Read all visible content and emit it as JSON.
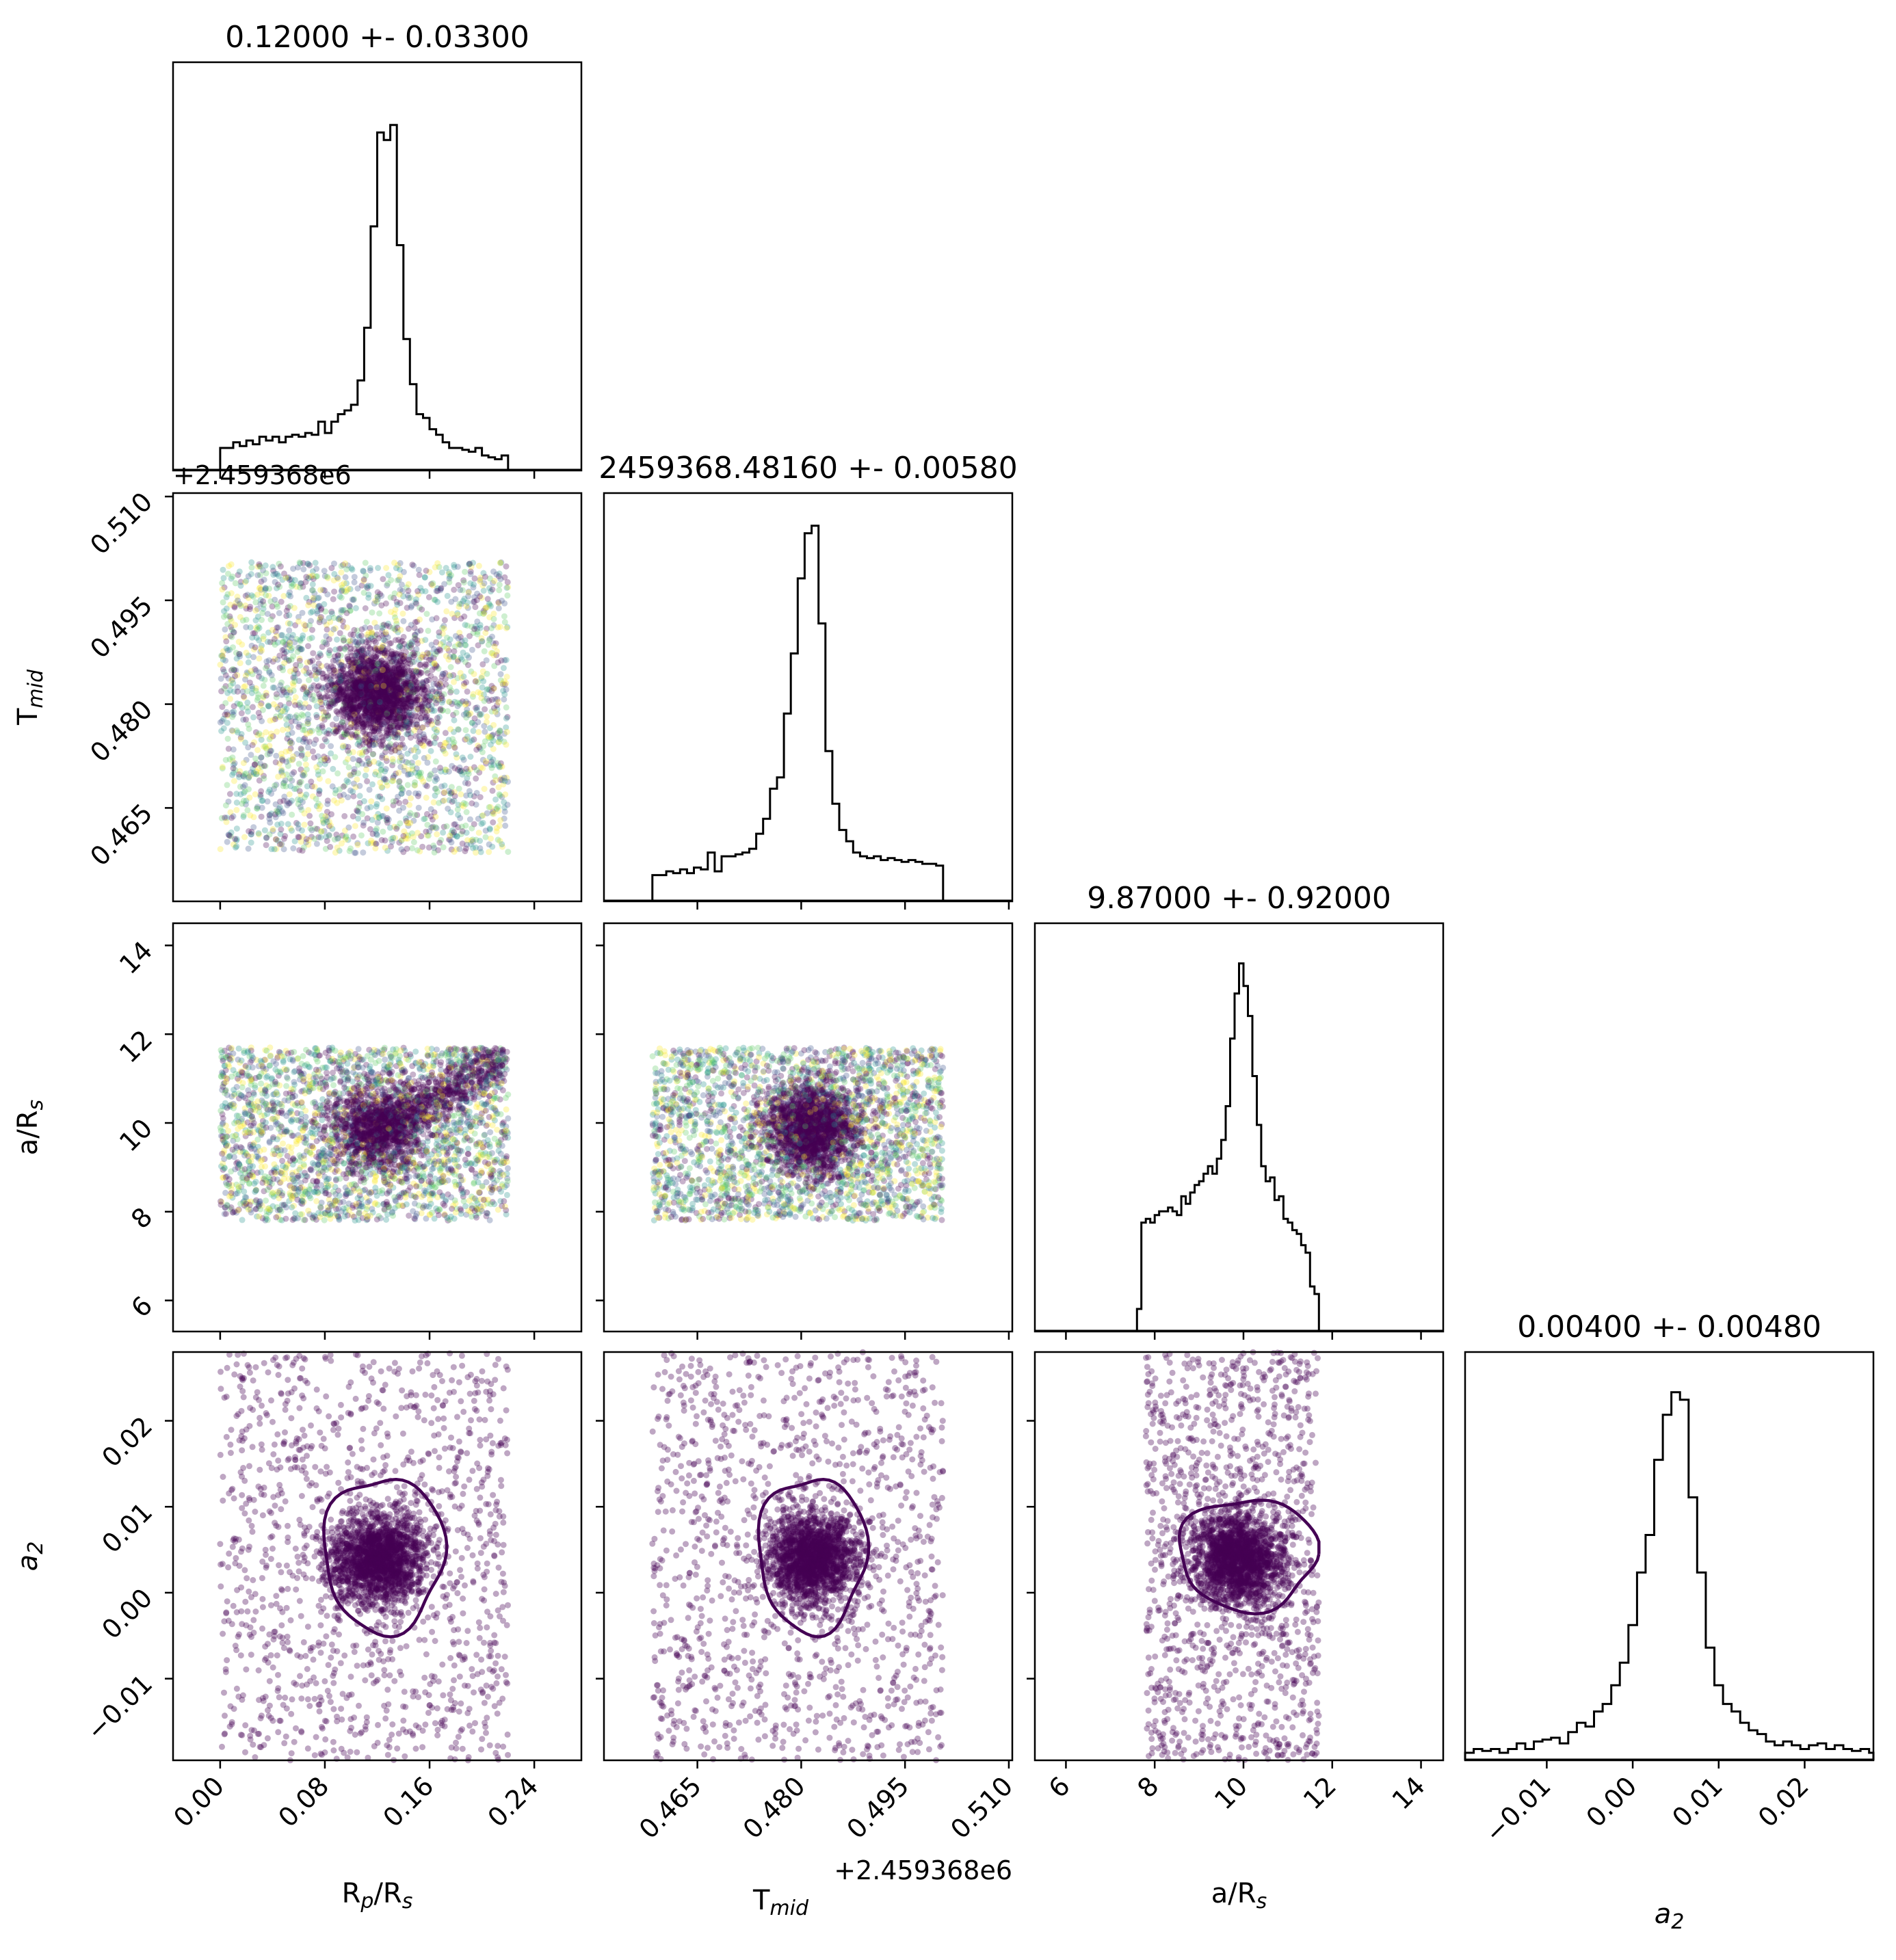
{
  "chart_data": {
    "type": "scatter",
    "subtype": "corner-plot",
    "parameters": [
      {
        "key": "rp",
        "label_main": "R",
        "label_sub": "p",
        "label_main2": "/R",
        "label_sub2": "s",
        "range": [
          -0.036,
          0.276
        ],
        "ticks": [
          0.0,
          0.08,
          0.16,
          0.24
        ],
        "tick_labels": [
          "0.00",
          "0.08",
          "0.16",
          "0.24"
        ],
        "offset_text": "",
        "title": "0.12000 +- 0.03300",
        "median": 0.12,
        "sigma": 0.033,
        "uniform_bounds": [
          0.0,
          0.22
        ]
      },
      {
        "key": "tmid",
        "label_main": "T",
        "label_sub": "mid",
        "label_main2": "",
        "label_sub2": "",
        "range": [
          0.4515,
          0.5105
        ],
        "ticks": [
          0.465,
          0.48,
          0.495,
          0.51
        ],
        "tick_labels": [
          "0.465",
          "0.480",
          "0.495",
          "0.510"
        ],
        "offset_text": "+2.459368e6",
        "title": "2459368.48160 +- 0.00580",
        "median": 0.4816,
        "sigma": 0.0058,
        "uniform_bounds": [
          0.4585,
          0.5005
        ]
      },
      {
        "key": "ars",
        "label_main": "a/R",
        "label_sub": "s",
        "label_main2": "",
        "label_sub2": "",
        "range": [
          5.3,
          14.5
        ],
        "ticks": [
          6,
          8,
          10,
          12,
          14
        ],
        "tick_labels": [
          "6",
          "8",
          "10",
          "12",
          "14"
        ],
        "offset_text": "",
        "title": "9.87000 +- 0.92000",
        "median": 9.87,
        "sigma": 0.92,
        "uniform_bounds": [
          7.8,
          11.7
        ]
      },
      {
        "key": "a2",
        "label_main": "a",
        "label_sub": "2",
        "label_main2": "",
        "label_sub2": "",
        "range": [
          -0.0195,
          0.028
        ],
        "ticks": [
          -0.01,
          0.0,
          0.01,
          0.02
        ],
        "tick_labels": [
          "−0.01",
          "0.00",
          "0.01",
          "0.02"
        ],
        "offset_text": "",
        "title": "0.00400 +- 0.00480",
        "median": 0.004,
        "sigma": 0.0048,
        "uniform_bounds": [
          -0.0195,
          0.028
        ]
      }
    ],
    "histograms": [
      {
        "param": "rp",
        "bins": [
          [
            0.0,
            0.06
          ],
          [
            0.005,
            0.06
          ],
          [
            0.01,
            0.075
          ],
          [
            0.015,
            0.065
          ],
          [
            0.02,
            0.08
          ],
          [
            0.025,
            0.07
          ],
          [
            0.03,
            0.09
          ],
          [
            0.035,
            0.08
          ],
          [
            0.04,
            0.09
          ],
          [
            0.045,
            0.075
          ],
          [
            0.05,
            0.09
          ],
          [
            0.055,
            0.095
          ],
          [
            0.06,
            0.09
          ],
          [
            0.065,
            0.1
          ],
          [
            0.07,
            0.095
          ],
          [
            0.075,
            0.13
          ],
          [
            0.08,
            0.1
          ],
          [
            0.085,
            0.13
          ],
          [
            0.09,
            0.15
          ],
          [
            0.095,
            0.16
          ],
          [
            0.1,
            0.175
          ],
          [
            0.105,
            0.24
          ],
          [
            0.11,
            0.38
          ],
          [
            0.115,
            0.65
          ],
          [
            0.12,
            0.9
          ],
          [
            0.125,
            0.88
          ],
          [
            0.13,
            0.92
          ],
          [
            0.135,
            0.6
          ],
          [
            0.14,
            0.35
          ],
          [
            0.145,
            0.23
          ],
          [
            0.15,
            0.15
          ],
          [
            0.155,
            0.14
          ],
          [
            0.16,
            0.11
          ],
          [
            0.165,
            0.095
          ],
          [
            0.17,
            0.075
          ],
          [
            0.175,
            0.06
          ],
          [
            0.18,
            0.06
          ],
          [
            0.185,
            0.055
          ],
          [
            0.19,
            0.05
          ],
          [
            0.195,
            0.06
          ],
          [
            0.2,
            0.04
          ],
          [
            0.205,
            0.035
          ],
          [
            0.21,
            0.03
          ],
          [
            0.215,
            0.04
          ]
        ]
      },
      {
        "param": "tmid",
        "bins": [
          [
            0.4585,
            0.07
          ],
          [
            0.4595,
            0.07
          ],
          [
            0.4605,
            0.08
          ],
          [
            0.4615,
            0.075
          ],
          [
            0.4625,
            0.085
          ],
          [
            0.4635,
            0.075
          ],
          [
            0.4645,
            0.09
          ],
          [
            0.4655,
            0.085
          ],
          [
            0.4665,
            0.13
          ],
          [
            0.4675,
            0.08
          ],
          [
            0.4685,
            0.12
          ],
          [
            0.4695,
            0.12
          ],
          [
            0.4705,
            0.125
          ],
          [
            0.4715,
            0.13
          ],
          [
            0.4725,
            0.14
          ],
          [
            0.4735,
            0.18
          ],
          [
            0.4745,
            0.22
          ],
          [
            0.4755,
            0.3
          ],
          [
            0.4765,
            0.33
          ],
          [
            0.4775,
            0.5
          ],
          [
            0.4785,
            0.66
          ],
          [
            0.4795,
            0.86
          ],
          [
            0.4805,
            0.98
          ],
          [
            0.4815,
            1.0
          ],
          [
            0.4825,
            0.74
          ],
          [
            0.4835,
            0.4
          ],
          [
            0.4845,
            0.26
          ],
          [
            0.4855,
            0.19
          ],
          [
            0.4865,
            0.16
          ],
          [
            0.4875,
            0.13
          ],
          [
            0.4885,
            0.12
          ],
          [
            0.4895,
            0.115
          ],
          [
            0.4905,
            0.12
          ],
          [
            0.4915,
            0.11
          ],
          [
            0.4925,
            0.115
          ],
          [
            0.4935,
            0.11
          ],
          [
            0.4945,
            0.105
          ],
          [
            0.4955,
            0.11
          ],
          [
            0.4965,
            0.105
          ],
          [
            0.4975,
            0.1
          ],
          [
            0.4985,
            0.1
          ],
          [
            0.4995,
            0.095
          ]
        ]
      },
      {
        "param": "ars",
        "bins": [
          [
            7.6,
            0.06
          ],
          [
            7.7,
            0.29
          ],
          [
            7.8,
            0.3
          ],
          [
            7.9,
            0.29
          ],
          [
            8.0,
            0.31
          ],
          [
            8.1,
            0.32
          ],
          [
            8.2,
            0.32
          ],
          [
            8.3,
            0.33
          ],
          [
            8.4,
            0.32
          ],
          [
            8.5,
            0.31
          ],
          [
            8.6,
            0.36
          ],
          [
            8.7,
            0.34
          ],
          [
            8.8,
            0.37
          ],
          [
            8.9,
            0.39
          ],
          [
            9.0,
            0.4
          ],
          [
            9.1,
            0.42
          ],
          [
            9.2,
            0.44
          ],
          [
            9.3,
            0.42
          ],
          [
            9.4,
            0.46
          ],
          [
            9.5,
            0.51
          ],
          [
            9.6,
            0.6
          ],
          [
            9.7,
            0.78
          ],
          [
            9.8,
            0.9
          ],
          [
            9.9,
            0.98
          ],
          [
            10.0,
            0.92
          ],
          [
            10.1,
            0.84
          ],
          [
            10.2,
            0.68
          ],
          [
            10.3,
            0.55
          ],
          [
            10.4,
            0.44
          ],
          [
            10.5,
            0.4
          ],
          [
            10.6,
            0.41
          ],
          [
            10.7,
            0.35
          ],
          [
            10.8,
            0.36
          ],
          [
            10.9,
            0.3
          ],
          [
            11.0,
            0.29
          ],
          [
            11.1,
            0.27
          ],
          [
            11.2,
            0.26
          ],
          [
            11.3,
            0.23
          ],
          [
            11.4,
            0.21
          ],
          [
            11.5,
            0.12
          ],
          [
            11.6,
            0.1
          ]
        ]
      },
      {
        "param": "a2",
        "bins": [
          [
            -0.0195,
            0.02
          ],
          [
            -0.0185,
            0.03
          ],
          [
            -0.0175,
            0.025
          ],
          [
            -0.0165,
            0.03
          ],
          [
            -0.0155,
            0.02
          ],
          [
            -0.0145,
            0.03
          ],
          [
            -0.0135,
            0.045
          ],
          [
            -0.0125,
            0.03
          ],
          [
            -0.0115,
            0.05
          ],
          [
            -0.0105,
            0.055
          ],
          [
            -0.0095,
            0.06
          ],
          [
            -0.0085,
            0.045
          ],
          [
            -0.0075,
            0.075
          ],
          [
            -0.0065,
            0.1
          ],
          [
            -0.0055,
            0.09
          ],
          [
            -0.0045,
            0.13
          ],
          [
            -0.0035,
            0.15
          ],
          [
            -0.0025,
            0.2
          ],
          [
            -0.0015,
            0.26
          ],
          [
            -0.0005,
            0.36
          ],
          [
            0.0005,
            0.5
          ],
          [
            0.0015,
            0.6
          ],
          [
            0.0025,
            0.8
          ],
          [
            0.0035,
            0.92
          ],
          [
            0.0045,
            0.98
          ],
          [
            0.0055,
            0.96
          ],
          [
            0.0065,
            0.7
          ],
          [
            0.0075,
            0.5
          ],
          [
            0.0085,
            0.3
          ],
          [
            0.0095,
            0.2
          ],
          [
            0.0105,
            0.15
          ],
          [
            0.0115,
            0.13
          ],
          [
            0.0125,
            0.1
          ],
          [
            0.0135,
            0.08
          ],
          [
            0.0145,
            0.07
          ],
          [
            0.0155,
            0.05
          ],
          [
            0.0165,
            0.04
          ],
          [
            0.0175,
            0.05
          ],
          [
            0.0185,
            0.04
          ],
          [
            0.0195,
            0.03
          ],
          [
            0.0205,
            0.04
          ],
          [
            0.0215,
            0.045
          ],
          [
            0.0225,
            0.03
          ],
          [
            0.0235,
            0.04
          ],
          [
            0.0245,
            0.03
          ],
          [
            0.0255,
            0.025
          ],
          [
            0.0265,
            0.03
          ],
          [
            0.0275,
            0.02
          ]
        ]
      }
    ],
    "contours": [
      {
        "x": "rp",
        "y": "a2",
        "center": [
          0.125,
          0.0045
        ],
        "half_width": [
          0.046,
          0.009
        ]
      },
      {
        "x": "tmid",
        "y": "a2",
        "center": [
          0.4816,
          0.0045
        ],
        "half_width": [
          0.0078,
          0.009
        ]
      },
      {
        "x": "ars",
        "y": "a2",
        "center": [
          10.1,
          0.0045
        ],
        "half_width": [
          1.55,
          0.0065
        ]
      }
    ],
    "xlabel_note": "",
    "ylim_hist": [
      0,
      1.0
    ],
    "grid": false,
    "legend": "none",
    "colors": {
      "hist": "#000000",
      "contour": "#440154",
      "dense": "#440154",
      "scatter_palette": [
        "#440154",
        "#3b528b",
        "#21918c",
        "#5ec962",
        "#fde725"
      ]
    }
  }
}
